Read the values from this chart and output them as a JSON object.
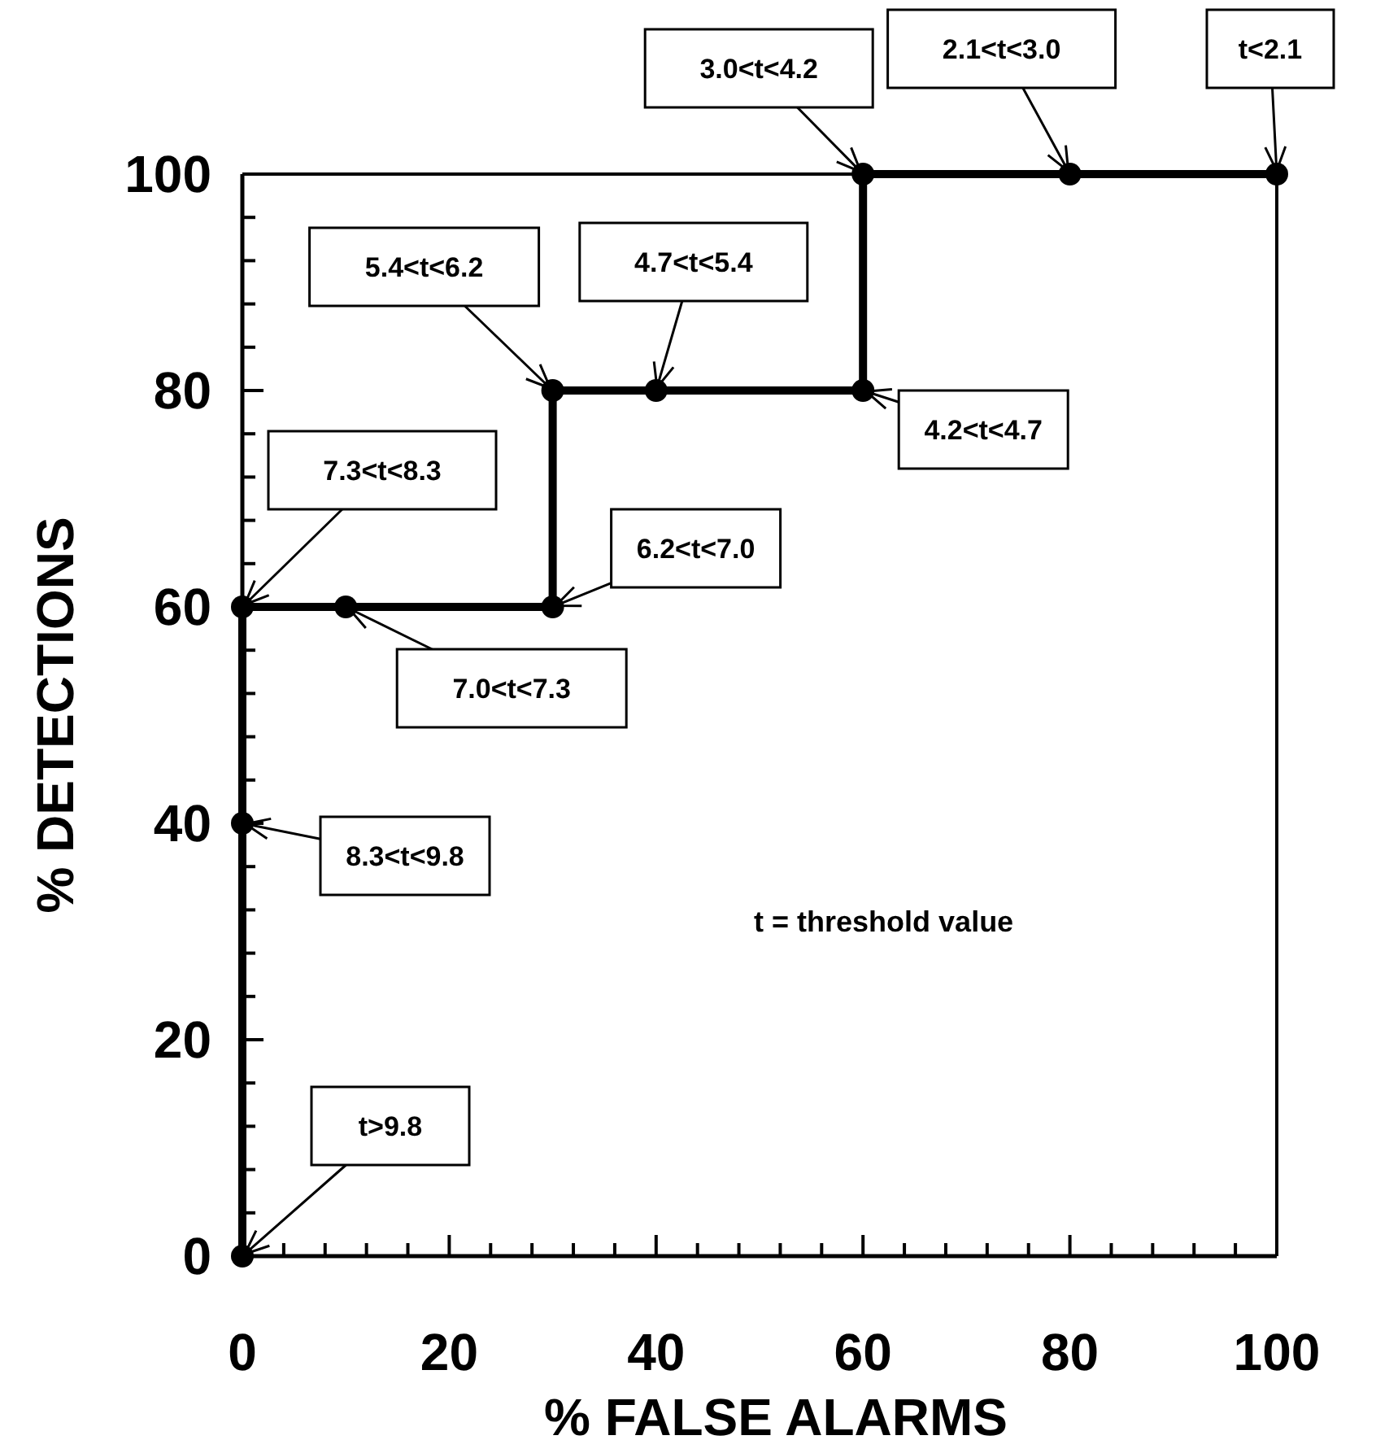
{
  "chart_data": {
    "type": "line",
    "xlabel": "% FALSE ALARMS",
    "ylabel": "% DETECTIONS",
    "x": [
      0,
      0,
      0,
      10,
      30,
      30,
      40,
      60,
      60,
      80,
      100
    ],
    "values": [
      0,
      40,
      60,
      60,
      60,
      80,
      80,
      80,
      100,
      100,
      100
    ],
    "color": "#000000",
    "marker": "circle",
    "line_style": "solid",
    "grid": false,
    "xlim": [
      0,
      100
    ],
    "ylim": [
      0,
      100
    ],
    "xticks": [
      0,
      {
        "value": 4,
        "label": null
      },
      {
        "value": 8,
        "label": null
      },
      {
        "value": 12,
        "label": null
      },
      {
        "value": 16,
        "label": null
      },
      20,
      {
        "value": 24,
        "label": null
      },
      {
        "value": 28,
        "label": null
      },
      {
        "value": 32,
        "label": null
      },
      {
        "value": 36,
        "label": null
      },
      40,
      {
        "value": 44,
        "label": null
      },
      {
        "value": 48,
        "label": null
      },
      {
        "value": 52,
        "label": null
      },
      {
        "value": 56,
        "label": null
      },
      60,
      {
        "value": 64,
        "label": null
      },
      {
        "value": 68,
        "label": null
      },
      {
        "value": 72,
        "label": null
      },
      {
        "value": 76,
        "label": null
      },
      80,
      {
        "value": 84,
        "label": null
      },
      {
        "value": 88,
        "label": null
      },
      {
        "value": 92,
        "label": null
      },
      {
        "value": 96,
        "label": null
      },
      100
    ],
    "yticks": [
      0,
      {
        "value": 4,
        "label": null
      },
      {
        "value": 8,
        "label": null
      },
      {
        "value": 12,
        "label": null
      },
      {
        "value": 16,
        "label": null
      },
      20,
      {
        "value": 24,
        "label": null
      },
      {
        "value": 28,
        "label": null
      },
      {
        "value": 32,
        "label": null
      },
      {
        "value": 36,
        "label": null
      },
      40,
      {
        "value": 44,
        "label": null
      },
      {
        "value": 48,
        "label": null
      },
      {
        "value": 52,
        "label": null
      },
      {
        "value": 56,
        "label": null
      },
      60,
      {
        "value": 64,
        "label": null
      },
      {
        "value": 68,
        "label": null
      },
      {
        "value": 72,
        "label": null
      },
      {
        "value": 76,
        "label": null
      },
      80,
      {
        "value": 84,
        "label": null
      },
      {
        "value": 88,
        "label": null
      },
      {
        "value": 92,
        "label": null
      },
      {
        "value": 96,
        "label": null
      },
      100
    ],
    "annotations": [
      {
        "text": "t>9.8",
        "x": 0,
        "y": 0
      },
      {
        "text": "8.3<t<9.8",
        "x": 0,
        "y": 40
      },
      {
        "text": "7.3<t<8.3",
        "x": 0,
        "y": 60
      },
      {
        "text": "7.0<t<7.3",
        "x": 10,
        "y": 60
      },
      {
        "text": "6.2<t<7.0",
        "x": 30,
        "y": 60
      },
      {
        "text": "5.4<t<6.2",
        "x": 30,
        "y": 80
      },
      {
        "text": "4.7<t<5.4",
        "x": 40,
        "y": 80
      },
      {
        "text": "4.2<t<4.7",
        "x": 60,
        "y": 80
      },
      {
        "text": "3.0<t<4.2",
        "x": 60,
        "y": 100
      },
      {
        "text": "2.1<t<3.0",
        "x": 80,
        "y": 100
      },
      {
        "text": "t<2.1",
        "x": 100,
        "y": 100
      },
      "t = threshold value"
    ]
  }
}
